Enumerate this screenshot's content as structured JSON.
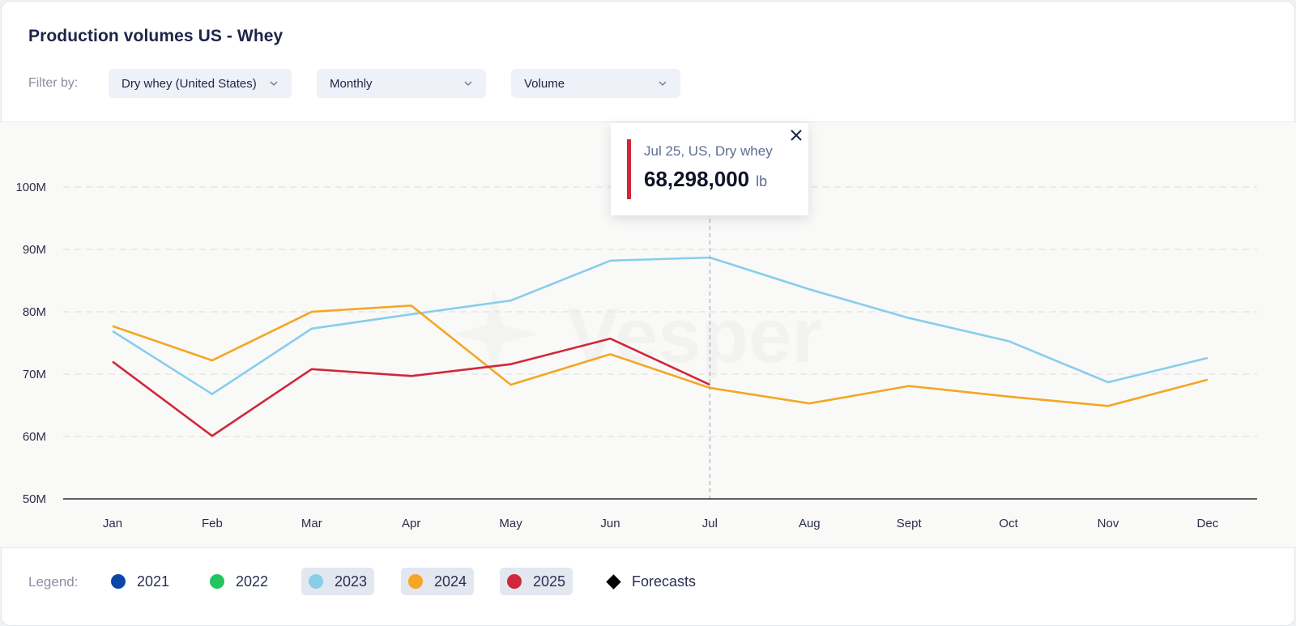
{
  "header": {
    "title": "Production volumes US - Whey",
    "filter_label": "Filter by:",
    "filters": [
      {
        "value": "Dry whey (United States)",
        "icon": "chevron-down-icon"
      },
      {
        "value": "Monthly",
        "icon": "chevron-down-icon"
      },
      {
        "value": "Volume",
        "icon": "chevron-down-icon"
      }
    ]
  },
  "tooltip": {
    "subtitle": "Jul 25, US, Dry whey",
    "value": "68,298,000",
    "unit": "lb",
    "accent": "#d0283a",
    "close_icon": "close-icon"
  },
  "watermark": "Vesper",
  "legend": {
    "label": "Legend:",
    "items": [
      {
        "label": "2021",
        "color": "#0a47a9",
        "active": false
      },
      {
        "label": "2022",
        "color": "#22c55e",
        "active": false
      },
      {
        "label": "2023",
        "color": "#87ceeb",
        "active": true
      },
      {
        "label": "2024",
        "color": "#f5a623",
        "active": true
      },
      {
        "label": "2025",
        "color": "#d0283a",
        "active": true
      },
      {
        "label": "Forecasts",
        "icon": "diamond-icon",
        "active": false
      }
    ]
  },
  "chart_data": {
    "type": "line",
    "title": "Production volumes US - Whey",
    "xlabel": "",
    "ylabel": "",
    "unit": "lb",
    "categories": [
      "Jan",
      "Feb",
      "Mar",
      "Apr",
      "May",
      "Jun",
      "Jul",
      "Aug",
      "Sept",
      "Oct",
      "Nov",
      "Dec"
    ],
    "y_ticks": [
      "50M",
      "60M",
      "70M",
      "80M",
      "90M",
      "100M"
    ],
    "y_tick_values": [
      50,
      60,
      70,
      80,
      90,
      100
    ],
    "ylim": [
      50,
      105
    ],
    "y_units": "million lb",
    "grid": true,
    "legend_position": "bottom",
    "highlight": {
      "category": "Jul",
      "series": "2025",
      "value": 68.298
    },
    "series": [
      {
        "name": "2023",
        "color": "#87ceeb",
        "values": [
          76.9,
          66.8,
          77.3,
          79.6,
          81.8,
          88.2,
          88.7,
          83.6,
          79.0,
          75.3,
          68.7,
          72.6
        ]
      },
      {
        "name": "2024",
        "color": "#f5a623",
        "values": [
          77.7,
          72.2,
          80.0,
          81.0,
          68.3,
          73.2,
          67.8,
          65.3,
          68.1,
          66.4,
          64.9,
          69.1
        ]
      },
      {
        "name": "2025",
        "color": "#d0283a",
        "values": [
          72.0,
          60.1,
          70.8,
          69.7,
          71.6,
          75.7,
          68.3,
          null,
          null,
          null,
          null,
          null
        ]
      }
    ]
  }
}
